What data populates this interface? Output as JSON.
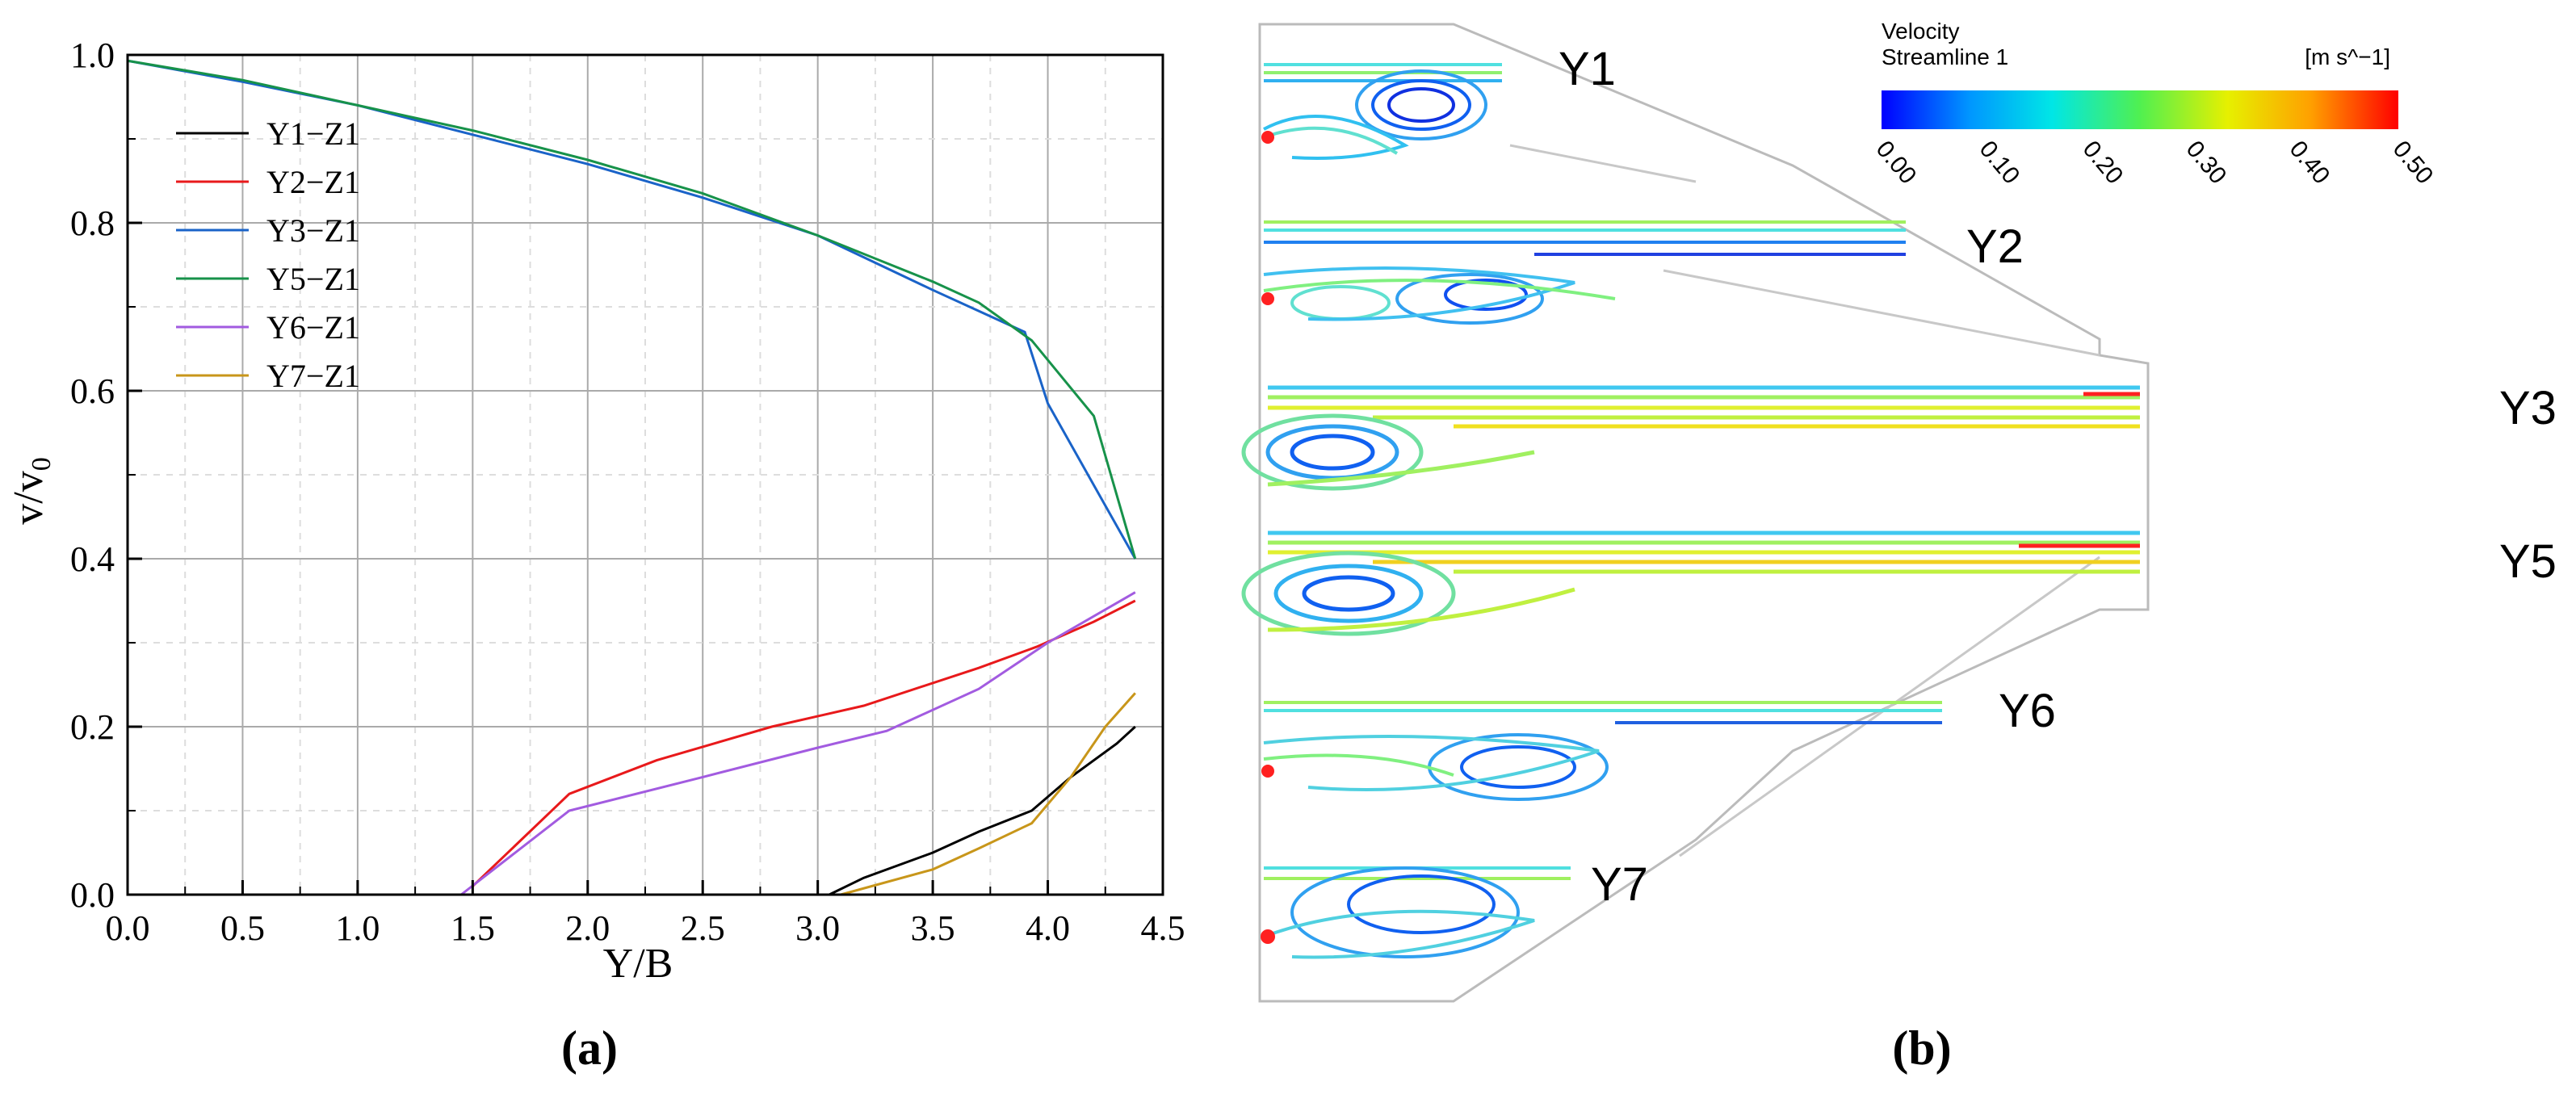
{
  "panel_a_label": "(a)",
  "panel_b_label": "(b)",
  "chart_data": {
    "type": "line",
    "xlabel": "Y/B",
    "ylabel": "v/v",
    "ylabel_sub": "0",
    "xlim": [
      0,
      4.5
    ],
    "ylim": [
      0,
      1.0
    ],
    "grid": true,
    "legend_position": "top-left",
    "x_ticks": [
      "0.0",
      "0.5",
      "1.0",
      "1.5",
      "2.0",
      "2.5",
      "3.0",
      "3.5",
      "4.0",
      "4.5"
    ],
    "y_ticks": [
      "0.0",
      "0.2",
      "0.4",
      "0.6",
      "0.8",
      "1.0"
    ],
    "series": [
      {
        "name": "Y1−Z1",
        "color": "#000000",
        "x": [
          3.05,
          3.2,
          3.5,
          3.7,
          3.93,
          4.1,
          4.3,
          4.38
        ],
        "y": [
          0.0,
          0.02,
          0.05,
          0.075,
          0.1,
          0.14,
          0.18,
          0.2
        ]
      },
      {
        "name": "Y2−Z1",
        "color": "#e8191b",
        "x": [
          1.5,
          1.92,
          2.3,
          2.8,
          3.2,
          3.7,
          3.95,
          4.2,
          4.38
        ],
        "y": [
          0.01,
          0.12,
          0.16,
          0.2,
          0.225,
          0.27,
          0.295,
          0.325,
          0.35
        ]
      },
      {
        "name": "Y3−Z1",
        "color": "#1a63c8",
        "x": [
          0.0,
          0.5,
          1.0,
          1.5,
          2.0,
          2.5,
          3.0,
          3.5,
          3.9,
          4.0,
          4.38
        ],
        "y": [
          0.993,
          0.968,
          0.94,
          0.905,
          0.87,
          0.83,
          0.785,
          0.72,
          0.67,
          0.585,
          0.4
        ]
      },
      {
        "name": "Y5−Z1",
        "color": "#17924a",
        "x": [
          0.0,
          0.5,
          1.0,
          1.5,
          2.0,
          2.5,
          3.0,
          3.5,
          3.7,
          3.93,
          4.2,
          4.38
        ],
        "y": [
          0.993,
          0.97,
          0.94,
          0.91,
          0.875,
          0.835,
          0.785,
          0.73,
          0.705,
          0.66,
          0.57,
          0.4
        ]
      },
      {
        "name": "Y6−Z1",
        "color": "#a25be0",
        "x": [
          1.45,
          1.92,
          2.5,
          3.0,
          3.3,
          3.7,
          4.0,
          4.38
        ],
        "y": [
          0.0,
          0.1,
          0.14,
          0.175,
          0.195,
          0.245,
          0.3,
          0.36
        ]
      },
      {
        "name": "Y7−Z1",
        "color": "#c8961a",
        "x": [
          3.1,
          3.5,
          3.7,
          3.93,
          4.1,
          4.25,
          4.38
        ],
        "y": [
          0.0,
          0.03,
          0.055,
          0.085,
          0.14,
          0.2,
          0.24
        ]
      }
    ]
  },
  "flow_panel": {
    "legend_title": "Velocity",
    "legend_subtitle": "Streamline 1",
    "legend_unit": "[m s^−1]",
    "colorbar_ticks": [
      "0.00",
      "0.10",
      "0.20",
      "0.30",
      "0.40",
      "0.50"
    ],
    "colorbar_colors": [
      "#0000ff",
      "#0096ff",
      "#00e6e6",
      "#50f050",
      "#e6f000",
      "#ffa000",
      "#ff0000"
    ],
    "branch_labels": [
      "Y1",
      "Y2",
      "Y3",
      "Y5",
      "Y6",
      "Y7"
    ]
  }
}
